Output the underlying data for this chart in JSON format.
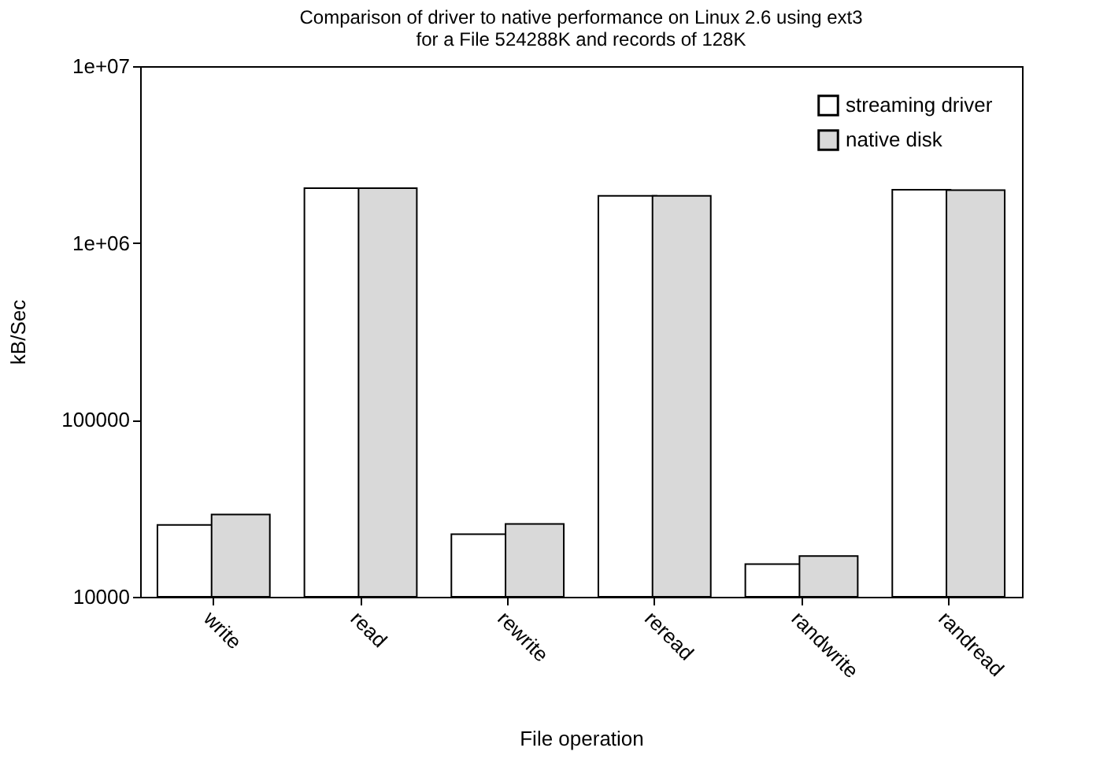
{
  "chart_data": {
    "type": "bar",
    "title": "Comparison of driver to native performance on Linux 2.6 using ext3\nfor a File 524288K and records of 128K",
    "xlabel": "File operation",
    "ylabel": "kB/Sec",
    "categories": [
      "write",
      "read",
      "rewrite",
      "reread",
      "randwrite",
      "randread"
    ],
    "series": [
      {
        "name": "streaming driver",
        "color": "#ffffff",
        "values": [
          25500,
          2040000,
          22600,
          1850000,
          15300,
          2000000
        ]
      },
      {
        "name": "native disk",
        "color": "#d9d9d9",
        "values": [
          29200,
          2040000,
          25800,
          1850000,
          17000,
          1990000
        ]
      }
    ],
    "log": true,
    "ylim": [
      10000,
      10000000
    ],
    "yticks": [
      10000,
      100000,
      {
        "value": 1000000,
        "label": "1e+06"
      },
      {
        "value": 10000000,
        "label": "1e+07"
      }
    ],
    "grid": false,
    "legend": "top right"
  }
}
